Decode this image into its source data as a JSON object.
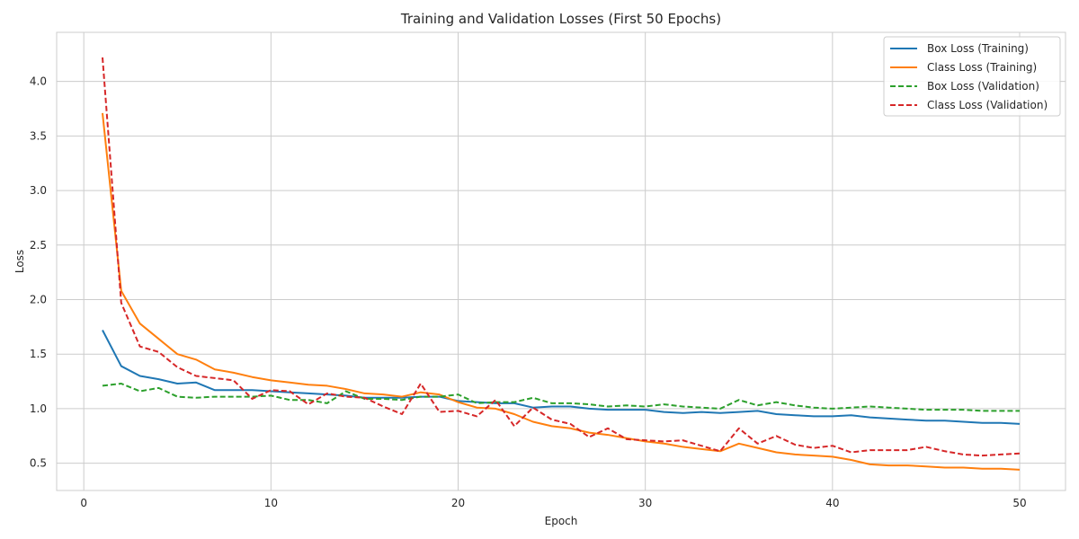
{
  "chart_data": {
    "type": "line",
    "title": "Training and Validation Losses (First 50 Epochs)",
    "xlabel": "Epoch",
    "ylabel": "Loss",
    "xlim": [
      -1.45,
      52.45
    ],
    "ylim": [
      0.25,
      4.45
    ],
    "xticks": [
      0,
      10,
      20,
      30,
      40,
      50
    ],
    "xtick_labels": [
      "0",
      "10",
      "20",
      "30",
      "40",
      "50"
    ],
    "yticks": [
      0.5,
      1.0,
      1.5,
      2.0,
      2.5,
      3.0,
      3.5,
      4.0
    ],
    "ytick_labels": [
      "0.5",
      "1.0",
      "1.5",
      "2.0",
      "2.5",
      "3.0",
      "3.5",
      "4.0"
    ],
    "grid": true,
    "legend_position": "top-right",
    "x": [
      1,
      2,
      3,
      4,
      5,
      6,
      7,
      8,
      9,
      10,
      11,
      12,
      13,
      14,
      15,
      16,
      17,
      18,
      19,
      20,
      21,
      22,
      23,
      24,
      25,
      26,
      27,
      28,
      29,
      30,
      31,
      32,
      33,
      34,
      35,
      36,
      37,
      38,
      39,
      40,
      41,
      42,
      43,
      44,
      45,
      46,
      47,
      48,
      49,
      50
    ],
    "series": [
      {
        "name": "Box Loss (Training)",
        "color": "#1f77b4",
        "style": "solid",
        "values": [
          1.72,
          1.39,
          1.3,
          1.27,
          1.23,
          1.24,
          1.17,
          1.17,
          1.17,
          1.16,
          1.15,
          1.14,
          1.13,
          1.12,
          1.1,
          1.1,
          1.1,
          1.11,
          1.11,
          1.07,
          1.06,
          1.05,
          1.05,
          1.01,
          1.02,
          1.02,
          1.0,
          0.99,
          0.99,
          0.99,
          0.97,
          0.96,
          0.97,
          0.96,
          0.97,
          0.98,
          0.95,
          0.94,
          0.93,
          0.93,
          0.94,
          0.92,
          0.91,
          0.9,
          0.89,
          0.89,
          0.88,
          0.87,
          0.87,
          0.86
        ]
      },
      {
        "name": "Class Loss (Training)",
        "color": "#ff7f0e",
        "style": "solid",
        "values": [
          3.71,
          2.08,
          1.78,
          1.64,
          1.5,
          1.45,
          1.36,
          1.33,
          1.29,
          1.26,
          1.24,
          1.22,
          1.21,
          1.18,
          1.14,
          1.13,
          1.11,
          1.15,
          1.13,
          1.06,
          1.01,
          1.0,
          0.95,
          0.88,
          0.84,
          0.82,
          0.78,
          0.76,
          0.73,
          0.7,
          0.68,
          0.65,
          0.63,
          0.61,
          0.68,
          0.64,
          0.6,
          0.58,
          0.57,
          0.56,
          0.53,
          0.49,
          0.48,
          0.48,
          0.47,
          0.46,
          0.46,
          0.45,
          0.45,
          0.44
        ]
      },
      {
        "name": "Box Loss (Validation)",
        "color": "#2ca02c",
        "style": "dashed",
        "values": [
          1.21,
          1.23,
          1.16,
          1.19,
          1.11,
          1.1,
          1.11,
          1.11,
          1.11,
          1.12,
          1.08,
          1.08,
          1.05,
          1.16,
          1.09,
          1.09,
          1.08,
          1.11,
          1.11,
          1.13,
          1.05,
          1.06,
          1.06,
          1.1,
          1.05,
          1.05,
          1.04,
          1.02,
          1.03,
          1.02,
          1.04,
          1.02,
          1.01,
          1.0,
          1.08,
          1.03,
          1.06,
          1.03,
          1.01,
          1.0,
          1.01,
          1.02,
          1.01,
          1.0,
          0.99,
          0.99,
          0.99,
          0.98,
          0.98,
          0.98
        ]
      },
      {
        "name": "Class Loss (Validation)",
        "color": "#d62728",
        "style": "dashed",
        "values": [
          4.22,
          1.97,
          1.57,
          1.52,
          1.38,
          1.3,
          1.28,
          1.26,
          1.09,
          1.17,
          1.16,
          1.04,
          1.14,
          1.11,
          1.1,
          1.02,
          0.95,
          1.23,
          0.97,
          0.98,
          0.93,
          1.08,
          0.84,
          1.01,
          0.9,
          0.86,
          0.74,
          0.82,
          0.72,
          0.71,
          0.7,
          0.71,
          0.66,
          0.61,
          0.82,
          0.68,
          0.75,
          0.67,
          0.64,
          0.66,
          0.6,
          0.62,
          0.62,
          0.62,
          0.65,
          0.61,
          0.58,
          0.57,
          0.58,
          0.59
        ]
      }
    ]
  }
}
